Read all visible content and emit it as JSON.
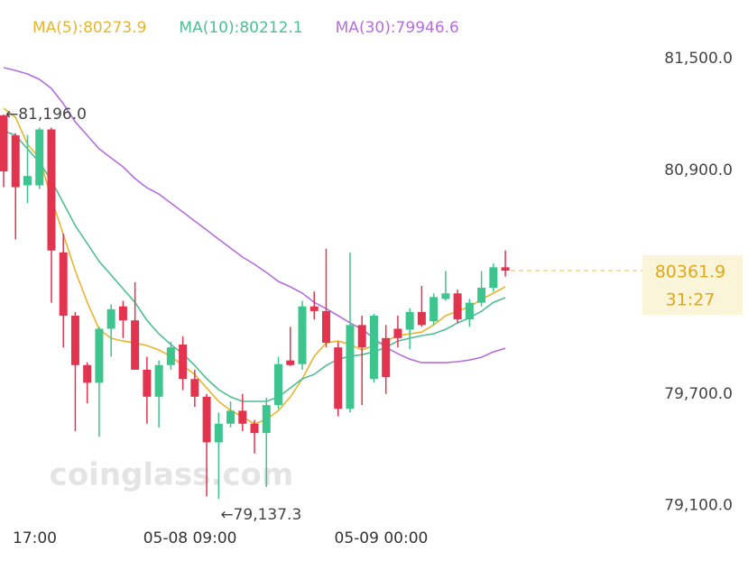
{
  "chart_data": {
    "type": "candlestick",
    "legend": [
      {
        "name": "MA(5):80273.9",
        "color": "#e8b52c"
      },
      {
        "name": "MA(10):80212.1",
        "color": "#4fbf92"
      },
      {
        "name": "MA(30):79946.6",
        "color": "#b46fdc"
      }
    ],
    "categories": [
      null,
      null,
      "17:00",
      null,
      null,
      null,
      null,
      null,
      null,
      null,
      null,
      null,
      null,
      null,
      null,
      "05-08 09:00",
      null,
      null,
      null,
      null,
      null,
      null,
      null,
      null,
      null,
      null,
      null,
      null,
      null,
      null,
      null,
      "05-09 00:00",
      null,
      null,
      null,
      null,
      null,
      null,
      null,
      null,
      null,
      null,
      null
    ],
    "open": [
      81196,
      81088,
      80820,
      80820,
      81120,
      80460,
      80120,
      79855,
      79760,
      80050,
      80170,
      80095,
      79830,
      79685,
      79855,
      79965,
      79780,
      79685,
      79440,
      79540,
      79610,
      79540,
      79490,
      79640,
      79880,
      79860,
      80170,
      80145,
      79950,
      79620,
      80070,
      79780,
      80000,
      80050,
      80045,
      80140,
      80090,
      80210,
      80240,
      80100,
      80190,
      80270,
      80380
    ],
    "high": [
      81200,
      81100,
      81090,
      81130,
      81130,
      80560,
      80140,
      79870,
      80060,
      80180,
      80200,
      80300,
      79900,
      79880,
      79980,
      80010,
      79830,
      79700,
      79600,
      79660,
      79700,
      79560,
      79680,
      79900,
      80060,
      80200,
      80250,
      80480,
      79980,
      80460,
      80120,
      80130,
      80070,
      80120,
      80160,
      80280,
      80240,
      80360,
      80260,
      80210,
      80360,
      80400,
      80470
    ],
    "low": [
      80810,
      80530,
      80725,
      80800,
      80190,
      79950,
      79500,
      79650,
      79470,
      79900,
      80000,
      79830,
      79540,
      79520,
      79830,
      79720,
      79630,
      79150,
      79137.3,
      79520,
      79500,
      79380,
      79200,
      79620,
      79850,
      79830,
      80100,
      79950,
      79580,
      79600,
      79640,
      79760,
      79700,
      79950,
      79940,
      80060,
      80070,
      80200,
      80080,
      80060,
      80170,
      80250,
      80330
    ],
    "close": [
      80895,
      80810,
      80870,
      81120,
      80470,
      80120,
      79855,
      79760,
      80050,
      80155,
      80095,
      79830,
      79685,
      79855,
      79950,
      79780,
      79685,
      79440,
      79540,
      79610,
      79540,
      79490,
      79640,
      79860,
      79855,
      80170,
      80145,
      79975,
      79620,
      80070,
      79950,
      80120,
      79790,
      80000,
      80140,
      80070,
      80220,
      80240,
      80100,
      80190,
      80270,
      80380,
      80361.9
    ],
    "series": [
      {
        "name": "MA(5)",
        "color": "#e8b52c",
        "values": [
          81234,
          81185,
          81040,
          80967,
          80749,
          80556,
          80362,
          80192,
          80047,
          79999,
          79984,
          79974,
          79960,
          79936,
          79902,
          79853,
          79805,
          79732,
          79660,
          79611,
          79577,
          79539,
          79563,
          79611,
          79684,
          79781,
          79902,
          79974,
          79984,
          79965,
          79936,
          79960,
          79984,
          80013,
          80023,
          80032,
          80071,
          80120,
          80144,
          80168,
          80207,
          80241,
          80275
        ]
      },
      {
        "name": "MA(10)",
        "color": "#4fbf92",
        "values": [
          81113,
          81088,
          81016,
          80943,
          80846,
          80725,
          80604,
          80507,
          80411,
          80338,
          80265,
          80192,
          80095,
          80023,
          79965,
          79916,
          79853,
          79781,
          79723,
          79684,
          79660,
          79660,
          79660,
          79684,
          79732,
          79781,
          79805,
          79853,
          79887,
          79902,
          79911,
          79926,
          79950,
          79984,
          79999,
          80013,
          80023,
          80047,
          80081,
          80110,
          80144,
          80192,
          80217
        ]
      },
      {
        "name": "MA(30)",
        "color": "#b46fdc",
        "values": [
          81452,
          81437,
          81418,
          81389,
          81340,
          81258,
          81161,
          81088,
          81016,
          80967,
          80919,
          80856,
          80807,
          80773,
          80725,
          80677,
          80628,
          80580,
          80531,
          80483,
          80435,
          80396,
          80352,
          80304,
          80275,
          80241,
          80192,
          80158,
          80120,
          80081,
          80047,
          79999,
          79950,
          79916,
          79887,
          79868,
          79868,
          79868,
          79873,
          79882,
          79897,
          79926,
          79945
        ]
      }
    ],
    "up_color": "#3ec48e",
    "down_color": "#e2334f",
    "ylim": [
      79050,
      81815
    ],
    "yticks": [
      {
        "value": 79100,
        "label": "79,100.0"
      },
      {
        "value": 79700,
        "label": "79,700.0"
      },
      {
        "value": 80900,
        "label": "80,900.0"
      },
      {
        "value": 81500,
        "label": "81,500.0"
      }
    ],
    "high_label": "←81,196.0",
    "low_label": "←79,137.3",
    "price_label": "80361.9",
    "countdown": "31:27",
    "watermark": "coinglass.com"
  }
}
